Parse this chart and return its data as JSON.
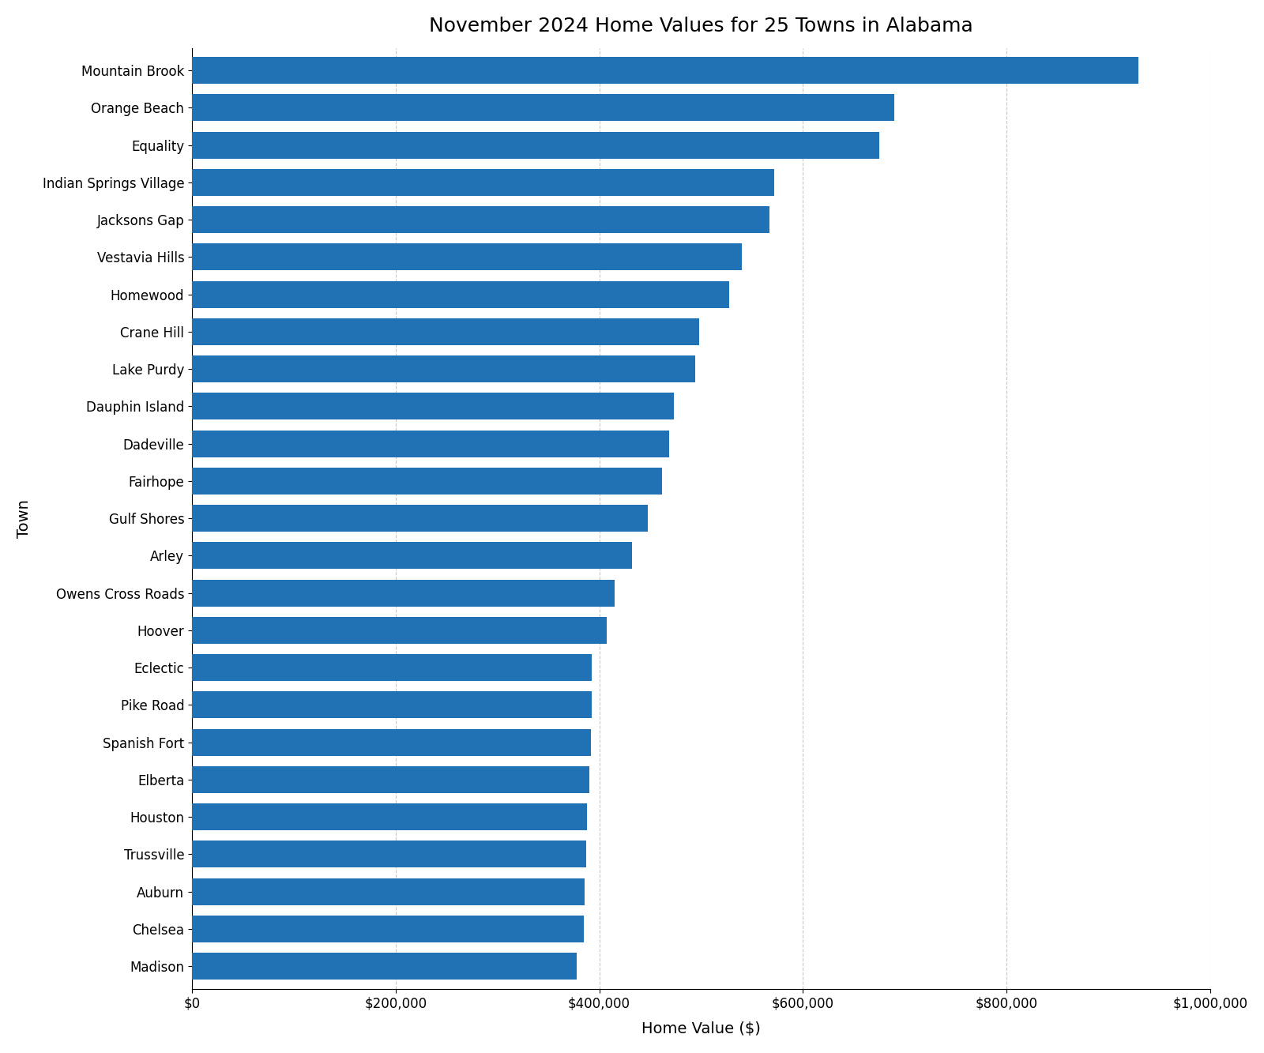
{
  "title": "November 2024 Home Values for 25 Towns in Alabama",
  "xlabel": "Home Value ($)",
  "ylabel": "Town",
  "towns": [
    "Mountain Brook",
    "Orange Beach",
    "Equality",
    "Indian Springs Village",
    "Jacksons Gap",
    "Vestavia Hills",
    "Homewood",
    "Crane Hill",
    "Lake Purdy",
    "Dauphin Island",
    "Dadeville",
    "Fairhope",
    "Gulf Shores",
    "Arley",
    "Owens Cross Roads",
    "Hoover",
    "Eclectic",
    "Pike Road",
    "Spanish Fort",
    "Elberta",
    "Houston",
    "Trussville",
    "Auburn",
    "Chelsea",
    "Madison"
  ],
  "values": [
    930000,
    690000,
    675000,
    572000,
    567000,
    540000,
    528000,
    498000,
    494000,
    473000,
    469000,
    462000,
    448000,
    432000,
    415000,
    407000,
    393000,
    393000,
    392000,
    390000,
    388000,
    387000,
    386000,
    385000,
    378000
  ],
  "bar_color": "#2171b5",
  "background_color": "#ffffff",
  "title_fontsize": 18,
  "axis_label_fontsize": 14,
  "tick_fontsize": 12,
  "xlim": [
    0,
    1000000
  ],
  "grid_color": "#c8c8c8"
}
